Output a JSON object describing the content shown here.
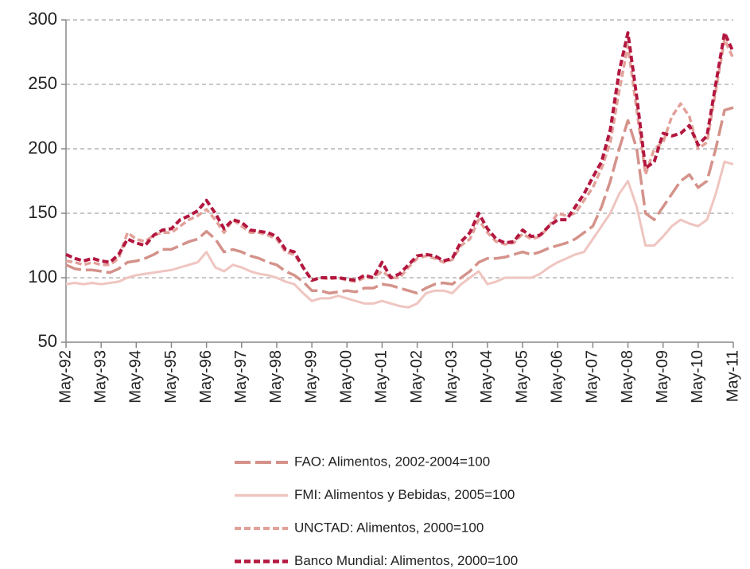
{
  "chart_data": {
    "type": "line",
    "categories": [
      "May-92",
      null,
      null,
      null,
      "May-93",
      null,
      null,
      null,
      "May-94",
      null,
      null,
      null,
      "May-95",
      null,
      null,
      null,
      "May-96",
      null,
      null,
      null,
      "May-97",
      null,
      null,
      null,
      "May-98",
      null,
      null,
      null,
      "May-99",
      null,
      null,
      null,
      "May-00",
      null,
      null,
      null,
      "May-01",
      null,
      null,
      null,
      "May-02",
      null,
      null,
      null,
      "May-03",
      null,
      null,
      null,
      "May-04",
      null,
      null,
      null,
      "May-05",
      null,
      null,
      null,
      "May-06",
      null,
      null,
      null,
      "May-07",
      null,
      null,
      null,
      "May-08",
      null,
      null,
      null,
      "May-09",
      null,
      null,
      null,
      "May-10",
      null,
      null,
      null,
      "May-11"
    ],
    "series": [
      {
        "name": "FAO: Alimentos, 2002-2004=100",
        "color": "#d4928a",
        "dash": "long-dash",
        "values": [
          110,
          107,
          106,
          106,
          105,
          104,
          107,
          112,
          113,
          115,
          118,
          122,
          122,
          125,
          128,
          130,
          136,
          130,
          120,
          122,
          120,
          117,
          115,
          112,
          110,
          105,
          102,
          97,
          90,
          90,
          88,
          89,
          90,
          89,
          92,
          92,
          95,
          94,
          92,
          90,
          88,
          92,
          95,
          96,
          95,
          100,
          105,
          112,
          115,
          115,
          116,
          118,
          120,
          118,
          120,
          123,
          125,
          127,
          130,
          135,
          140,
          155,
          175,
          200,
          222,
          200,
          150,
          145,
          155,
          165,
          175,
          180,
          170,
          175,
          200,
          230,
          232
        ]
      },
      {
        "name": "FMI: Alimentos y Bebidas, 2005=100",
        "color": "#efc5c0",
        "dash": "solid",
        "values": [
          95,
          96,
          95,
          96,
          95,
          96,
          97,
          100,
          102,
          103,
          104,
          105,
          106,
          108,
          110,
          112,
          120,
          108,
          105,
          110,
          108,
          105,
          103,
          102,
          100,
          97,
          95,
          88,
          82,
          84,
          84,
          86,
          84,
          82,
          80,
          80,
          82,
          80,
          78,
          77,
          80,
          88,
          90,
          90,
          88,
          95,
          100,
          105,
          95,
          97,
          100,
          100,
          100,
          100,
          103,
          108,
          112,
          115,
          118,
          120,
          130,
          140,
          150,
          165,
          175,
          155,
          125,
          125,
          132,
          140,
          145,
          142,
          140,
          145,
          165,
          190,
          188
        ]
      },
      {
        "name": "UNCTAD: Alimentos, 2000=100",
        "color": "#e2a199",
        "dash": "dash",
        "values": [
          113,
          112,
          110,
          112,
          110,
          110,
          115,
          135,
          130,
          128,
          133,
          135,
          135,
          140,
          145,
          148,
          153,
          145,
          135,
          145,
          140,
          135,
          135,
          133,
          130,
          120,
          118,
          108,
          98,
          100,
          99,
          100,
          98,
          97,
          100,
          100,
          105,
          100,
          100,
          108,
          115,
          117,
          115,
          112,
          114,
          125,
          130,
          145,
          135,
          128,
          126,
          127,
          134,
          130,
          132,
          140,
          150,
          148,
          150,
          160,
          170,
          185,
          205,
          245,
          280,
          230,
          180,
          200,
          205,
          225,
          235,
          225,
          200,
          205,
          245,
          285,
          270
        ]
      },
      {
        "name": "Banco Mundial: Alimentos, 2000=100",
        "color": "#b3173f",
        "dash": "dash",
        "values": [
          118,
          115,
          113,
          115,
          113,
          112,
          118,
          130,
          127,
          125,
          133,
          137,
          138,
          145,
          148,
          152,
          160,
          150,
          138,
          145,
          143,
          137,
          136,
          135,
          132,
          122,
          120,
          108,
          98,
          100,
          100,
          100,
          99,
          98,
          102,
          100,
          112,
          100,
          103,
          110,
          117,
          118,
          117,
          113,
          115,
          128,
          135,
          150,
          138,
          130,
          127,
          128,
          137,
          132,
          133,
          140,
          145,
          145,
          155,
          165,
          178,
          190,
          215,
          260,
          290,
          240,
          185,
          190,
          212,
          210,
          212,
          218,
          203,
          210,
          250,
          290,
          275
        ]
      }
    ],
    "ylim": [
      50,
      300
    ],
    "yticks": [
      50,
      100,
      150,
      200,
      250,
      300
    ],
    "grid": true
  }
}
